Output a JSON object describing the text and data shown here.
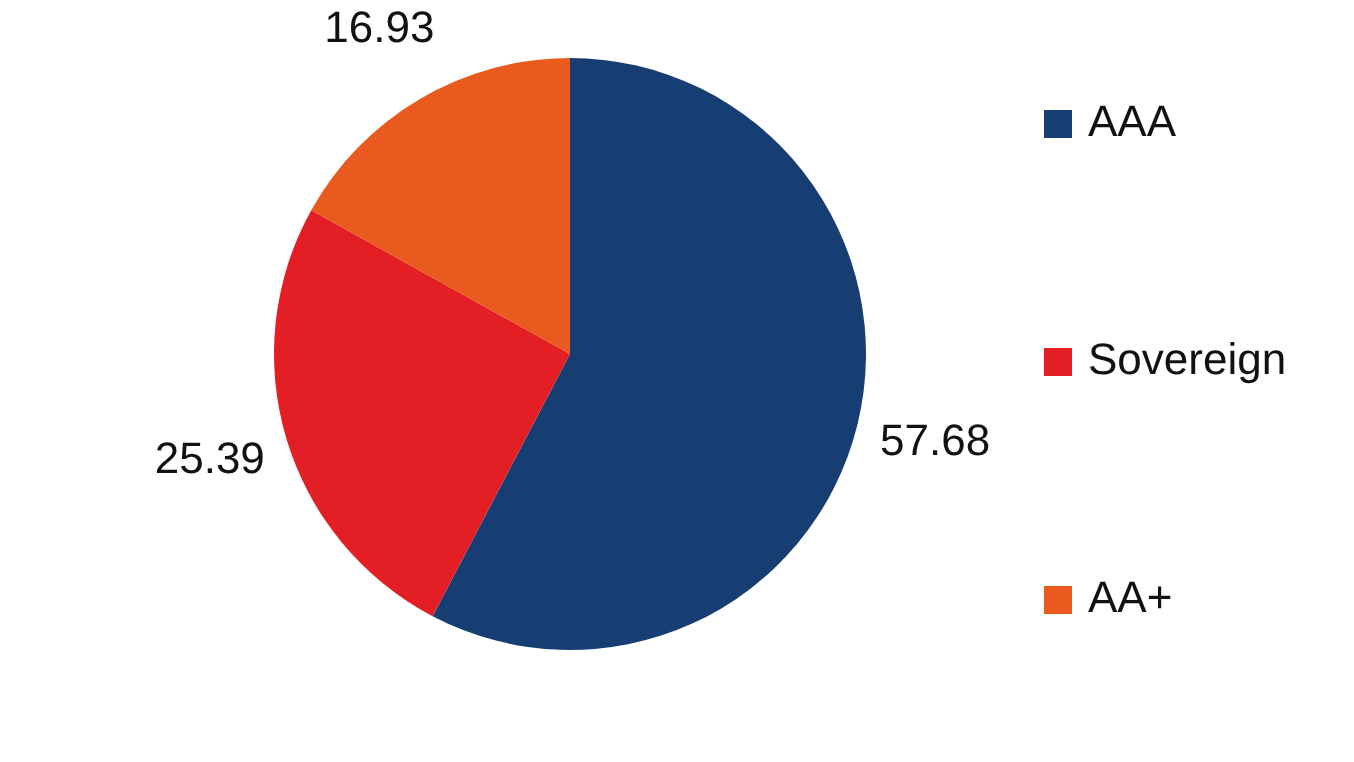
{
  "chart_data": {
    "type": "pie",
    "categories": [
      "AAA",
      "Sovereign",
      "AA+"
    ],
    "values": [
      57.68,
      25.39,
      16.93
    ],
    "colors": [
      "#173e72",
      "#e31e24",
      "#e85a1e"
    ],
    "data_labels": true,
    "legend": "right"
  }
}
